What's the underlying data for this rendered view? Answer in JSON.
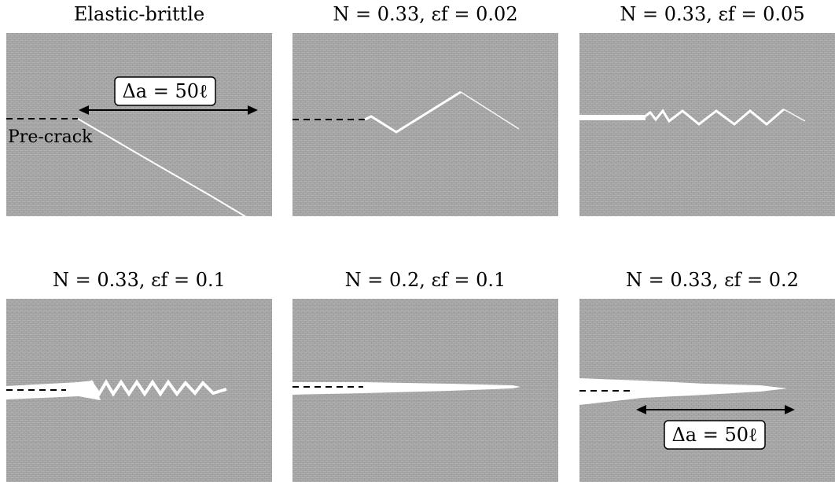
{
  "figure": {
    "background_color": "#9a9a9a",
    "crack_color": "#ffffff",
    "panels": [
      {
        "title": "Elastic-brittle",
        "pre_crack_label": "Pre-crack",
        "delta_a_label": "Δa = 50ℓ"
      },
      {
        "title": "N = 0.33, εf = 0.02"
      },
      {
        "title": "N = 0.33, εf = 0.05"
      },
      {
        "title": "N = 0.33, εf = 0.1"
      },
      {
        "title": "N = 0.2, εf = 0.1"
      },
      {
        "title": "N = 0.33, εf = 0.2",
        "delta_a_label": "Δa = 50ℓ"
      }
    ]
  }
}
